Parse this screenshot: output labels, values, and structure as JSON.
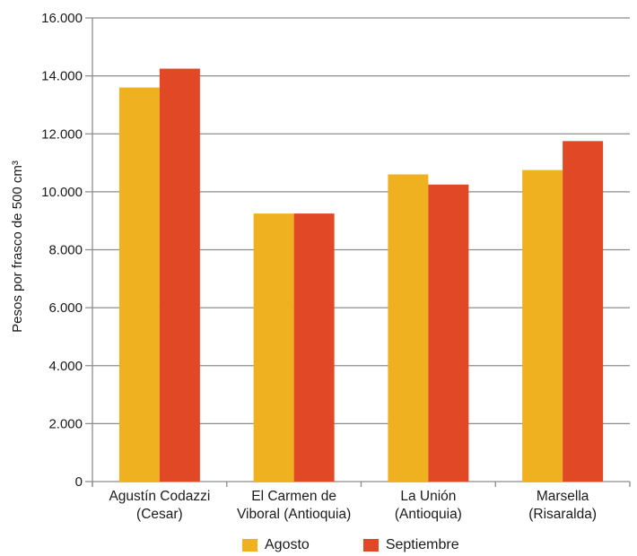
{
  "chart_data": {
    "type": "bar",
    "ylabel": "Pesos por frasco de 500 cm³",
    "ylim": [
      0,
      16000
    ],
    "y_ticks": [
      0,
      2000,
      4000,
      6000,
      8000,
      10000,
      12000,
      14000,
      16000
    ],
    "y_tick_labels": [
      "0",
      "2.000",
      "4.000",
      "6.000",
      "8.000",
      "10.000",
      "12.000",
      "14.000",
      "16.000"
    ],
    "categories": [
      [
        "Agustín Codazzi",
        "(Cesar)"
      ],
      [
        "El Carmen de",
        "Viboral (Antioquia)"
      ],
      [
        "La Unión",
        "(Antioquia)"
      ],
      [
        "Marsella",
        "(Risaralda)"
      ]
    ],
    "series": [
      {
        "name": "Agosto",
        "color": "#F0B121",
        "values": [
          13600,
          9250,
          10600,
          10750
        ]
      },
      {
        "name": "Septiembre",
        "color": "#E04826",
        "values": [
          14250,
          9250,
          10250,
          11750
        ]
      }
    ],
    "grid": true,
    "legend_position": "bottom"
  }
}
